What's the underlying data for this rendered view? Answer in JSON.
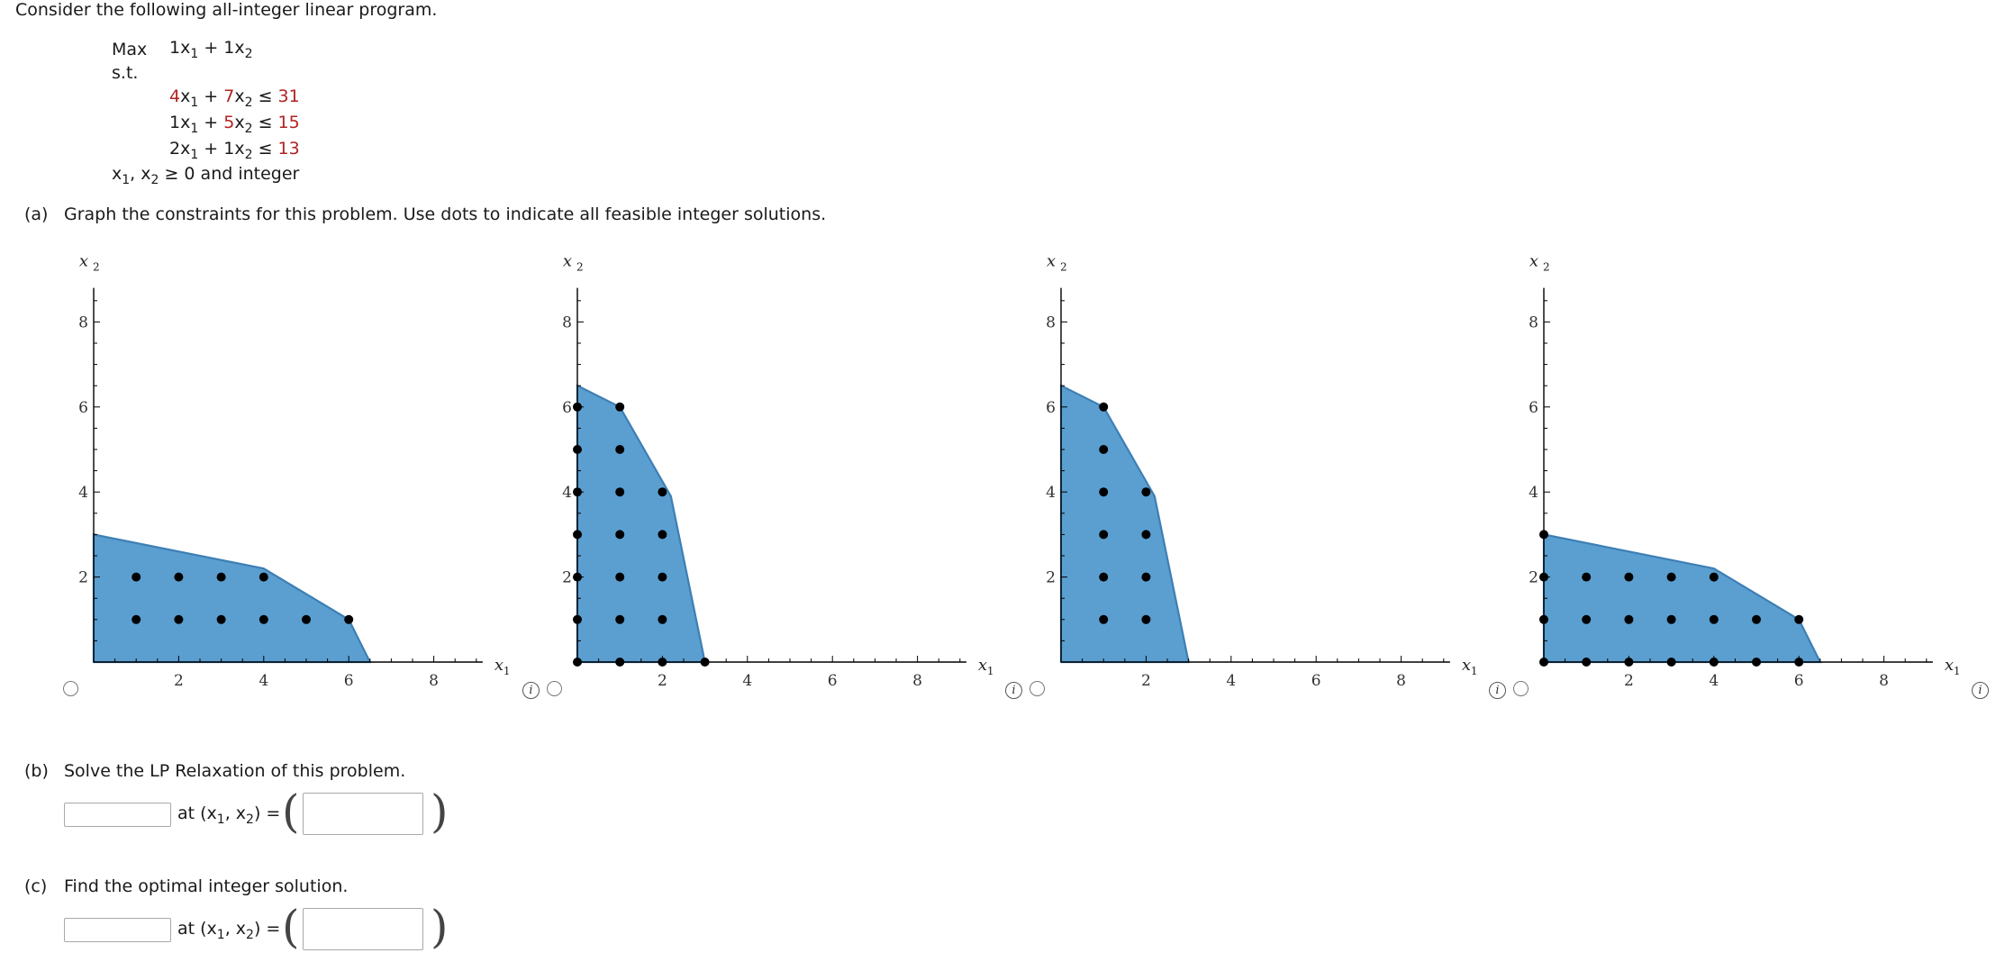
{
  "intro": "Consider the following all-integer linear program.",
  "lp": {
    "max_label": "Max",
    "st_label": "s.t.",
    "objective": {
      "c1": "1",
      "c2": "1",
      "var1": "x",
      "sub1": "1",
      "plus": "+",
      "var2": "x",
      "sub2": "2"
    },
    "constraints": [
      {
        "a1": "4",
        "a2": "7",
        "rhs": "31",
        "a1_red": true,
        "a2_red": true
      },
      {
        "a1": "1",
        "a2": "5",
        "rhs": "15",
        "a1_red": false,
        "a2_red": true
      },
      {
        "a1": "2",
        "a2": "1",
        "rhs": "13",
        "a1_red": false,
        "a2_red": false
      }
    ],
    "leq": "≤",
    "nonneg": "≥ 0 and integer"
  },
  "part_a": {
    "label": "(a)",
    "text": "Graph the constraints for this problem. Use dots to indicate all feasible integer solutions."
  },
  "part_b": {
    "label": "(b)",
    "text": "Solve the LP Relaxation of this problem.",
    "at_text": "at (x",
    "input_value": "",
    "point_value": ""
  },
  "part_c": {
    "label": "(c)",
    "text": "Find the optimal integer solution.",
    "at_text": "at (x",
    "input_value": "",
    "point_value": ""
  },
  "graph_labels": {
    "x_axis": "x",
    "x_sub": "1",
    "y_axis": "x",
    "y_sub": "2",
    "info_glyph": "i"
  },
  "colors": {
    "fill": "#5b9fd0",
    "edge": "#3d7fb5",
    "dot": "#000000",
    "red": "#b22222"
  },
  "chart_data": [
    {
      "type": "scatter",
      "xlim": [
        0,
        9
      ],
      "ylim": [
        0,
        9
      ],
      "x_ticks": [
        2,
        4,
        6,
        8
      ],
      "y_ticks": [
        2,
        4,
        6,
        8
      ],
      "region": [
        [
          0,
          0
        ],
        [
          0,
          3
        ],
        [
          4,
          2.2
        ],
        [
          6,
          1
        ],
        [
          6.5,
          0
        ]
      ],
      "points": [
        [
          1,
          1
        ],
        [
          2,
          1
        ],
        [
          3,
          1
        ],
        [
          4,
          1
        ],
        [
          5,
          1
        ],
        [
          6,
          1
        ],
        [
          1,
          2
        ],
        [
          2,
          2
        ],
        [
          3,
          2
        ],
        [
          4,
          2
        ]
      ]
    },
    {
      "type": "scatter",
      "xlim": [
        0,
        9
      ],
      "ylim": [
        0,
        9
      ],
      "x_ticks": [
        2,
        4,
        6,
        8
      ],
      "y_ticks": [
        2,
        4,
        6,
        8
      ],
      "region": [
        [
          0,
          0
        ],
        [
          0,
          6.5
        ],
        [
          1,
          6
        ],
        [
          2.2,
          3.9
        ],
        [
          3,
          0
        ]
      ],
      "points": [
        [
          0,
          0
        ],
        [
          1,
          0
        ],
        [
          2,
          0
        ],
        [
          3,
          0
        ],
        [
          0,
          1
        ],
        [
          1,
          1
        ],
        [
          2,
          1
        ],
        [
          0,
          2
        ],
        [
          1,
          2
        ],
        [
          2,
          2
        ],
        [
          0,
          3
        ],
        [
          1,
          3
        ],
        [
          2,
          3
        ],
        [
          0,
          4
        ],
        [
          1,
          4
        ],
        [
          2,
          4
        ],
        [
          0,
          5
        ],
        [
          1,
          5
        ],
        [
          0,
          6
        ],
        [
          1,
          6
        ]
      ]
    },
    {
      "type": "scatter",
      "xlim": [
        0,
        9
      ],
      "ylim": [
        0,
        9
      ],
      "x_ticks": [
        2,
        4,
        6,
        8
      ],
      "y_ticks": [
        2,
        4,
        6,
        8
      ],
      "region": [
        [
          0,
          0
        ],
        [
          0,
          6.5
        ],
        [
          1,
          6
        ],
        [
          2.2,
          3.9
        ],
        [
          3,
          0
        ]
      ],
      "points": [
        [
          1,
          1
        ],
        [
          2,
          1
        ],
        [
          1,
          2
        ],
        [
          2,
          2
        ],
        [
          1,
          3
        ],
        [
          2,
          3
        ],
        [
          1,
          4
        ],
        [
          2,
          4
        ],
        [
          1,
          5
        ],
        [
          1,
          6
        ]
      ]
    },
    {
      "type": "scatter",
      "xlim": [
        0,
        9
      ],
      "ylim": [
        0,
        9
      ],
      "x_ticks": [
        2,
        4,
        6,
        8
      ],
      "y_ticks": [
        2,
        4,
        6,
        8
      ],
      "region": [
        [
          0,
          0
        ],
        [
          0,
          3
        ],
        [
          4,
          2.2
        ],
        [
          6,
          1
        ],
        [
          6.5,
          0
        ]
      ],
      "points": [
        [
          0,
          0
        ],
        [
          1,
          0
        ],
        [
          2,
          0
        ],
        [
          3,
          0
        ],
        [
          4,
          0
        ],
        [
          5,
          0
        ],
        [
          6,
          0
        ],
        [
          0,
          1
        ],
        [
          1,
          1
        ],
        [
          2,
          1
        ],
        [
          3,
          1
        ],
        [
          4,
          1
        ],
        [
          5,
          1
        ],
        [
          6,
          1
        ],
        [
          0,
          2
        ],
        [
          1,
          2
        ],
        [
          2,
          2
        ],
        [
          3,
          2
        ],
        [
          4,
          2
        ],
        [
          0,
          3
        ]
      ]
    }
  ]
}
